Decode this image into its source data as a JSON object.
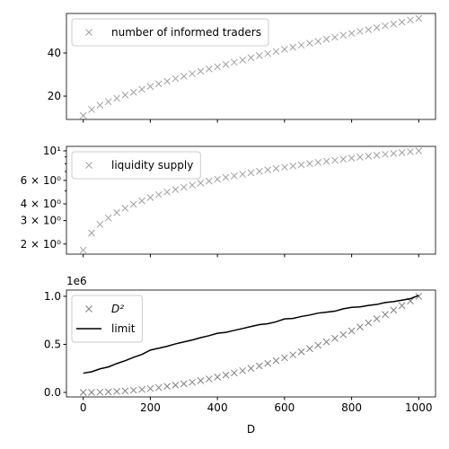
{
  "chart_data": [
    {
      "type": "scatter",
      "xlim": [
        -50,
        1050
      ],
      "xticks": [
        0,
        200,
        400,
        600,
        800,
        1000
      ],
      "ylim": [
        9.2,
        58.3
      ],
      "yticks": [
        20,
        40
      ],
      "legend": "upper left",
      "x": [
        0,
        25,
        50,
        75,
        100,
        125,
        150,
        175,
        200,
        225,
        250,
        275,
        300,
        325,
        350,
        375,
        400,
        425,
        450,
        475,
        500,
        525,
        550,
        575,
        600,
        625,
        650,
        675,
        700,
        725,
        750,
        775,
        800,
        825,
        850,
        875,
        900,
        925,
        950,
        975,
        1000
      ],
      "series": [
        {
          "name": "number of informed traders",
          "color": "#a0a0a0",
          "marker": "x",
          "values": [
            11.0,
            13.8,
            15.8,
            17.4,
            19.0,
            20.5,
            21.8,
            23.2,
            24.5,
            25.7,
            26.9,
            28.1,
            29.2,
            30.4,
            31.5,
            32.6,
            33.6,
            34.7,
            35.7,
            36.7,
            37.8,
            38.8,
            39.7,
            40.7,
            41.7,
            42.6,
            43.6,
            44.5,
            45.4,
            46.4,
            47.3,
            48.2,
            49.1,
            50.0,
            50.8,
            51.7,
            52.6,
            53.4,
            54.3,
            55.2,
            56.0
          ]
        }
      ]
    },
    {
      "type": "scatter",
      "log_y": true,
      "xlim": [
        -50,
        1050
      ],
      "xticks": [
        0,
        200,
        400,
        600,
        800,
        1000
      ],
      "ylim": [
        1.68,
        10.8
      ],
      "yticks": [
        {
          "value": 2,
          "label": "2 × 10⁰"
        },
        {
          "value": 3,
          "label": "3 × 10⁰"
        },
        {
          "value": 4,
          "label": "4 × 10⁰"
        },
        {
          "value": 6,
          "label": "6 × 10⁰"
        },
        {
          "value": 10,
          "label": "10¹"
        }
      ],
      "yminorticks": [
        5,
        7,
        8,
        9
      ],
      "legend": "upper left",
      "x": [
        0,
        25,
        50,
        75,
        100,
        125,
        150,
        175,
        200,
        225,
        250,
        275,
        300,
        325,
        350,
        375,
        400,
        425,
        450,
        475,
        500,
        525,
        550,
        575,
        600,
        625,
        650,
        675,
        700,
        725,
        750,
        775,
        800,
        825,
        850,
        875,
        900,
        925,
        950,
        975,
        1000
      ],
      "series": [
        {
          "name": "liquidity supply",
          "color": "#a0a0a0",
          "marker": "x",
          "values": [
            1.8,
            2.42,
            2.81,
            3.14,
            3.44,
            3.71,
            3.97,
            4.22,
            4.46,
            4.69,
            4.91,
            5.12,
            5.33,
            5.53,
            5.73,
            5.93,
            6.12,
            6.31,
            6.49,
            6.67,
            6.85,
            7.02,
            7.2,
            7.37,
            7.54,
            7.7,
            7.86,
            8.03,
            8.19,
            8.35,
            8.5,
            8.66,
            8.81,
            8.97,
            9.12,
            9.27,
            9.42,
            9.56,
            9.71,
            9.86,
            10.0
          ]
        }
      ]
    },
    {
      "type": "line",
      "xlim": [
        -50,
        1050
      ],
      "xticks": [
        0,
        200,
        400,
        600,
        800,
        1000
      ],
      "xlabel": "D",
      "ylim": [
        -47000,
        1065000
      ],
      "yticks": [
        {
          "value": 0,
          "label": "0.0"
        },
        {
          "value": 500000,
          "label": "0.5"
        },
        {
          "value": 1000000,
          "label": "1.0"
        }
      ],
      "y_offset_label": "1e6",
      "legend": "upper left",
      "x": [
        0,
        25,
        50,
        75,
        100,
        125,
        150,
        175,
        200,
        225,
        250,
        275,
        300,
        325,
        350,
        375,
        400,
        425,
        450,
        475,
        500,
        525,
        550,
        575,
        600,
        625,
        650,
        675,
        700,
        725,
        750,
        775,
        800,
        825,
        850,
        875,
        900,
        925,
        950,
        975,
        1000
      ],
      "series": [
        {
          "name": "D²",
          "color": "#808080",
          "marker": "x",
          "values": [
            0,
            625,
            2500,
            5625,
            10000,
            15625,
            22500,
            30625,
            40000,
            50625,
            62500,
            75625,
            90000,
            105625,
            122500,
            140625,
            160000,
            180625,
            202500,
            225625,
            250000,
            275625,
            302500,
            330625,
            360000,
            390625,
            422500,
            455625,
            490000,
            525625,
            562500,
            600625,
            640000,
            680625,
            722500,
            765625,
            810000,
            855625,
            902500,
            950625,
            1000000
          ]
        },
        {
          "name": "limit",
          "color": "#000000",
          "marker": "line",
          "values": [
            200000,
            215000,
            245000,
            265000,
            300000,
            330000,
            365000,
            395000,
            440000,
            460000,
            480000,
            505000,
            525000,
            545000,
            570000,
            590000,
            615000,
            625000,
            645000,
            665000,
            685000,
            705000,
            715000,
            735000,
            765000,
            770000,
            790000,
            805000,
            825000,
            835000,
            845000,
            870000,
            885000,
            890000,
            905000,
            915000,
            935000,
            945000,
            960000,
            975000,
            1010000
          ]
        }
      ]
    }
  ]
}
